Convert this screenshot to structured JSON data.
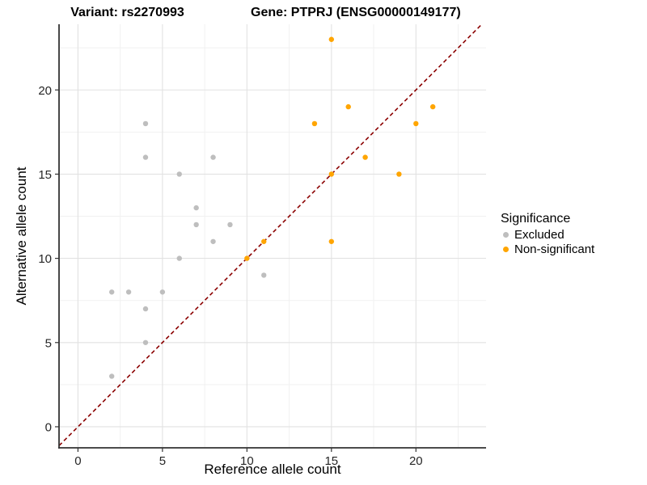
{
  "chart_data": {
    "type": "scatter",
    "title_left": "Variant: rs2270993",
    "title_right": "Gene: PTPRJ (ENSG00000149177)",
    "xlabel": "Reference allele count",
    "ylabel": "Alternative allele count",
    "legend_title": "Significance",
    "legend_position": "right",
    "grid": true,
    "background": "#ffffff",
    "x_range": [
      -1.12,
      24.15
    ],
    "y_range": [
      -1.25,
      23.9
    ],
    "x_ticks": [
      0,
      5,
      10,
      15,
      20
    ],
    "y_ticks": [
      0,
      5,
      10,
      15,
      20
    ],
    "x_minor_ticks": [
      2.5,
      7.5,
      12.5,
      17.5,
      22.5
    ],
    "y_minor_ticks": [
      2.5,
      7.5,
      12.5,
      17.5,
      22.5
    ],
    "reference_line": {
      "slope": 1,
      "intercept": 0,
      "linetype": "dashed",
      "color": "#8B0000"
    },
    "series": [
      {
        "name": "Excluded",
        "color": "#BEBEBE",
        "points": [
          [
            2,
            3
          ],
          [
            2,
            8
          ],
          [
            3,
            8
          ],
          [
            4,
            5
          ],
          [
            4,
            7
          ],
          [
            4,
            16
          ],
          [
            4,
            18
          ],
          [
            5,
            8
          ],
          [
            6,
            10
          ],
          [
            6,
            15
          ],
          [
            7,
            12
          ],
          [
            7,
            13
          ],
          [
            8,
            11
          ],
          [
            8,
            16
          ],
          [
            9,
            12
          ],
          [
            11,
            9
          ]
        ]
      },
      {
        "name": "Non-significant",
        "color": "#FFA500",
        "points": [
          [
            10,
            10
          ],
          [
            11,
            11
          ],
          [
            14,
            18
          ],
          [
            15,
            11
          ],
          [
            15,
            15
          ],
          [
            15,
            23
          ],
          [
            16,
            19
          ],
          [
            17,
            16
          ],
          [
            19,
            15
          ],
          [
            20,
            18
          ],
          [
            21,
            19
          ]
        ]
      }
    ]
  }
}
